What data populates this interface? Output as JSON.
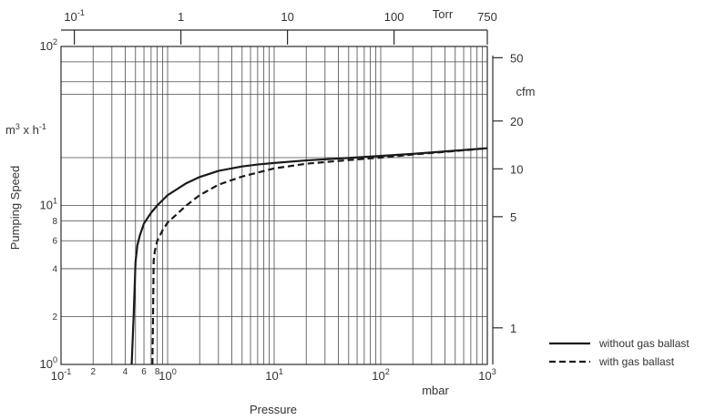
{
  "chart_data": {
    "type": "line",
    "xscale": "log",
    "yscale": "log",
    "xlim": [
      0.1,
      1000
    ],
    "ylim": [
      1,
      100
    ],
    "xlabel": "Pressure",
    "x_unit": "mbar",
    "ylabel": "Pumping Speed",
    "y_unit": "m³ x h⁻¹",
    "top_axis": {
      "unit": "Torr",
      "ticks": [
        {
          "torr": 0.1,
          "label": "10⁻¹"
        },
        {
          "torr": 1,
          "label": "1"
        },
        {
          "torr": 10,
          "label": "10"
        },
        {
          "torr": 100,
          "label": "100"
        },
        {
          "torr": 750,
          "label": "750"
        }
      ]
    },
    "right_axis": {
      "unit": "cfm",
      "ticks": [
        {
          "cfm": 50,
          "label": "50"
        },
        {
          "cfm": 20,
          "label": "20"
        },
        {
          "cfm": 10,
          "label": "10"
        },
        {
          "cfm": 5,
          "label": "5"
        },
        {
          "cfm": 1,
          "label": "1"
        }
      ]
    },
    "x_ticks": [
      {
        "value": 0.1,
        "label": "10⁻¹"
      },
      {
        "value": 0.2,
        "label": "2"
      },
      {
        "value": 0.4,
        "label": "4"
      },
      {
        "value": 0.6,
        "label": "6"
      },
      {
        "value": 0.8,
        "label": "8"
      },
      {
        "value": 1,
        "label": "10⁰"
      },
      {
        "value": 10,
        "label": "10¹"
      },
      {
        "value": 100,
        "label": "10²"
      },
      {
        "value": 1000,
        "label": "10³"
      }
    ],
    "y_ticks": [
      {
        "value": 1,
        "label": "10⁰"
      },
      {
        "value": 2,
        "label": "2"
      },
      {
        "value": 4,
        "label": "4"
      },
      {
        "value": 6,
        "label": "6"
      },
      {
        "value": 8,
        "label": "8"
      },
      {
        "value": 10,
        "label": "10¹"
      },
      {
        "value": 100,
        "label": "10²"
      }
    ],
    "grid_x": [
      0.1,
      0.2,
      0.3,
      0.4,
      0.5,
      0.6,
      0.7,
      0.8,
      0.9,
      1,
      2,
      3,
      4,
      5,
      6,
      7,
      8,
      9,
      10,
      20,
      30,
      40,
      50,
      60,
      70,
      80,
      90,
      100,
      200,
      300,
      400,
      500,
      600,
      700,
      800,
      900,
      1000
    ],
    "grid_y": [
      1,
      2,
      4,
      6,
      8,
      10,
      20,
      50,
      60,
      80,
      100
    ],
    "series": [
      {
        "name": "without gas ballast",
        "style": "solid",
        "color": "#1a1a1a",
        "points": [
          [
            0.46,
            1.0
          ],
          [
            0.48,
            2.0
          ],
          [
            0.5,
            4.4
          ],
          [
            0.52,
            5.6
          ],
          [
            0.55,
            6.5
          ],
          [
            0.6,
            7.7
          ],
          [
            0.7,
            9.0
          ],
          [
            0.8,
            10.0
          ],
          [
            1.0,
            11.6
          ],
          [
            1.5,
            13.8
          ],
          [
            2,
            15.1
          ],
          [
            3,
            16.5
          ],
          [
            5,
            17.6
          ],
          [
            7,
            18.1
          ],
          [
            10,
            18.5
          ],
          [
            20,
            19.2
          ],
          [
            50,
            19.9
          ],
          [
            100,
            20.5
          ],
          [
            200,
            21.1
          ],
          [
            500,
            22.1
          ],
          [
            1000,
            22.9
          ]
        ]
      },
      {
        "name": "with gas ballast",
        "style": "dashed",
        "color": "#1a1a1a",
        "points": [
          [
            0.72,
            1.0
          ],
          [
            0.73,
            2.0
          ],
          [
            0.74,
            4.5
          ],
          [
            0.76,
            5.2
          ],
          [
            0.8,
            6.0
          ],
          [
            0.9,
            7.0
          ],
          [
            1.0,
            7.8
          ],
          [
            1.5,
            10.0
          ],
          [
            2,
            11.6
          ],
          [
            3,
            13.5
          ],
          [
            5,
            15.2
          ],
          [
            10,
            17.1
          ],
          [
            20,
            18.3
          ],
          [
            50,
            19.3
          ],
          [
            100,
            20.0
          ],
          [
            200,
            20.9
          ],
          [
            500,
            22.0
          ],
          [
            1000,
            22.9
          ]
        ]
      }
    ]
  }
}
